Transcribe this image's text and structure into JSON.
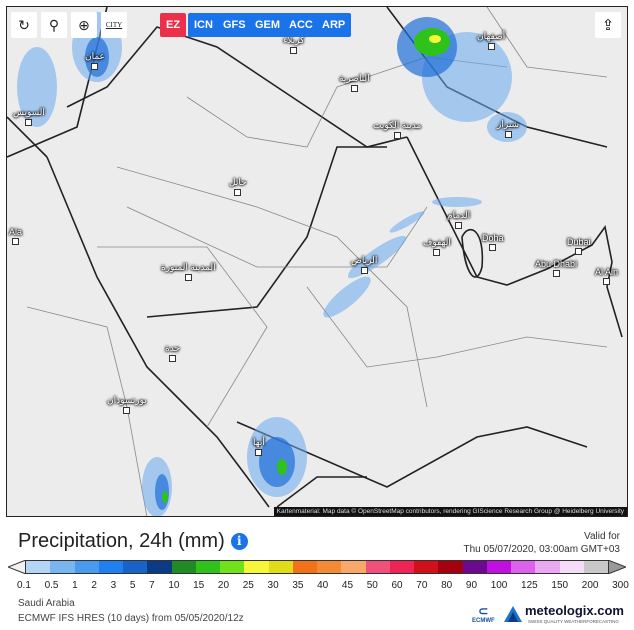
{
  "toolbar": {
    "tools": [
      {
        "icon": "refresh-icon",
        "glyph": "↻"
      },
      {
        "icon": "map-pin-icon",
        "glyph": "⚲"
      },
      {
        "icon": "zoom-icon",
        "glyph": "⊕"
      },
      {
        "icon": "city-icon",
        "glyph": "CITY"
      }
    ],
    "models": [
      "EZ",
      "ICN",
      "GFS",
      "GEM",
      "ACC",
      "ARP"
    ],
    "active_model": "EZ",
    "share_glyph": "⇪"
  },
  "map": {
    "cities": [
      "Doha",
      "Abu Dhabi",
      "Dubai",
      "Al Ain",
      "الرياض",
      "المدينة المنورة",
      "حائل",
      "جدة",
      "مدينة الكويت",
      "الناصرية",
      "كربلاء",
      "أصفهان",
      "شيراز",
      "الهفوف",
      "الدمام",
      "عمان",
      "السويس",
      "أبها",
      "بورتسودان",
      "Ala"
    ],
    "attribution": "Kartenmaterial: Map data © OpenStreetMap contributors, rendering GIScience Research Group @ Heidelberg University"
  },
  "legend": {
    "title": "Precipitation, 24h (mm)",
    "info_glyph": "i",
    "valid_label": "Valid for",
    "valid_time": "Thu 05/07/2020, 03:00am GMT+03",
    "labels": [
      "0.1",
      "0.5",
      "1",
      "2",
      "3",
      "5",
      "7",
      "10",
      "15",
      "20",
      "25",
      "30",
      "35",
      "40",
      "45",
      "50",
      "60",
      "70",
      "80",
      "90",
      "100",
      "125",
      "150",
      "200",
      "300"
    ],
    "colors": [
      "#b3d6f7",
      "#79b6f0",
      "#4a9bef",
      "#1f80ee",
      "#1863c8",
      "#0c3a84",
      "#1e8c23",
      "#2ec21a",
      "#6fe21a",
      "#f7f73a",
      "#e2dc18",
      "#f2721a",
      "#f58a34",
      "#f7a86a",
      "#f0507a",
      "#ee2455",
      "#d2101a",
      "#a5000e",
      "#6b0a90",
      "#c010e0",
      "#dc62ee",
      "#eaa8f2",
      "#f5dcf7",
      "#c8c8c8"
    ]
  },
  "footer": {
    "region": "Saudi Arabia",
    "model": "ECMWF IFS HRES (10 days) from 05/05/2020/12z",
    "ecmwf": "ECMWF",
    "brand": "meteologix.com",
    "tagline": "SWISS QUALITY WEATHERFORECASTING"
  }
}
